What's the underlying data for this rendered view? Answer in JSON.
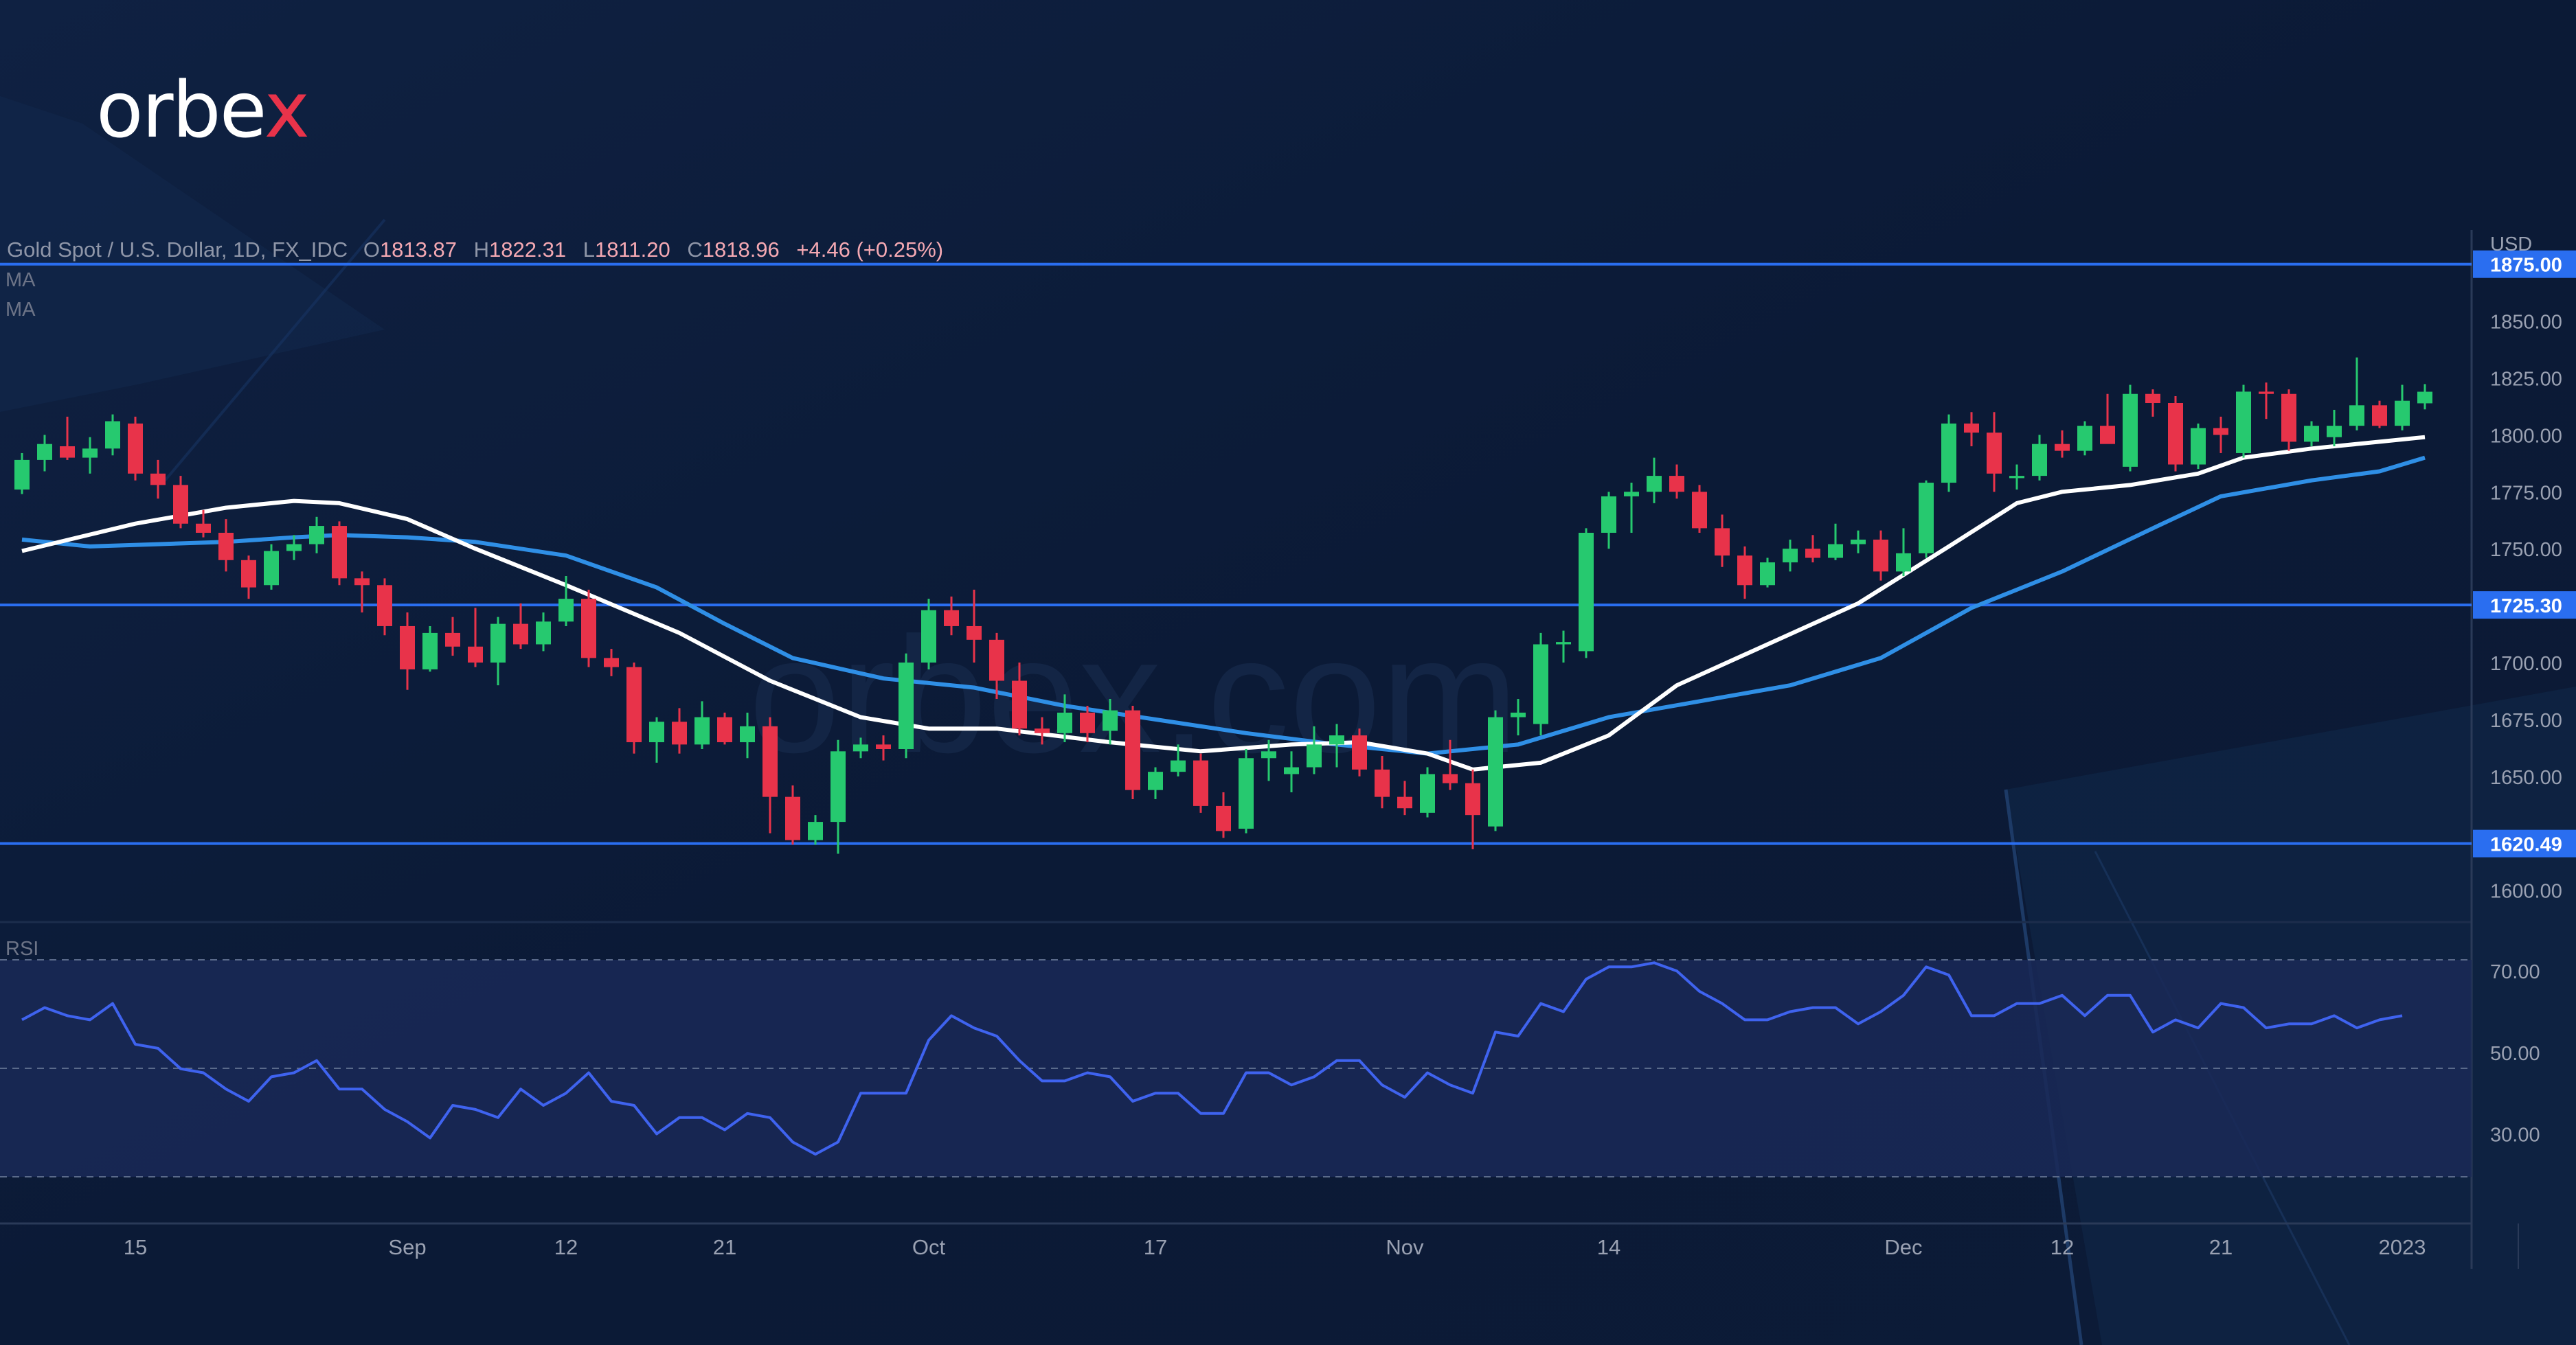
{
  "brand": {
    "logo_text": "orbe",
    "logo_accent": "x",
    "watermark": "orbex.com"
  },
  "header": {
    "symbol": "Gold Spot / U.S. Dollar, 1D, FX_IDC",
    "open_label": "O",
    "open": "1813.87",
    "high_label": "H",
    "high": "1822.31",
    "low_label": "L",
    "low": "1811.20",
    "close_label": "C",
    "close": "1818.96",
    "change": "+4.46 (+0.25%)",
    "indicators": [
      "MA",
      "MA"
    ],
    "rsi_label": "RSI"
  },
  "colors": {
    "background": "#0b1a36",
    "bull": "#26c96f",
    "bear": "#e8334a",
    "level_line": "#2a6ef0",
    "ma_fast": "#ffffff",
    "ma_slow": "#2f8fe6",
    "rsi_line": "#3f63ef"
  },
  "chart_data": [
    {
      "type": "candlestick",
      "title": "Gold Spot / U.S. Dollar, 1D, FX_IDC",
      "unit": "USD",
      "ylim": [
        1586,
        1890
      ],
      "y_ticks": [
        1600,
        1650,
        1675,
        1700,
        1725,
        1750,
        1775,
        1800,
        1825,
        1850
      ],
      "y_tick_labels": [
        "1600.00",
        "1650.00",
        "1675.00",
        "1700.00",
        "1725.00",
        "1750.00",
        "1775.00",
        "1800.00",
        "1825.00",
        "1850.00"
      ],
      "x_tick_labels": [
        {
          "label": "15",
          "index": 5
        },
        {
          "label": "Sep",
          "index": 17
        },
        {
          "label": "12",
          "index": 24
        },
        {
          "label": "21",
          "index": 31
        },
        {
          "label": "Oct",
          "index": 40
        },
        {
          "label": "17",
          "index": 50
        },
        {
          "label": "Nov",
          "index": 61
        },
        {
          "label": "14",
          "index": 70
        },
        {
          "label": "Dec",
          "index": 83
        },
        {
          "label": "12",
          "index": 90
        },
        {
          "label": "21",
          "index": 97
        },
        {
          "label": "2023",
          "index": 105
        }
      ],
      "levels": [
        {
          "value": 1875.0,
          "label": "1875.00"
        },
        {
          "value": 1725.3,
          "label": "1725.30"
        },
        {
          "value": 1620.49,
          "label": "1620.49"
        }
      ],
      "candles": [
        [
          1776,
          1792,
          1774,
          1789
        ],
        [
          1789,
          1800,
          1784,
          1796
        ],
        [
          1795,
          1808,
          1789,
          1790
        ],
        [
          1790,
          1799,
          1783,
          1794
        ],
        [
          1794,
          1809,
          1791,
          1806
        ],
        [
          1805,
          1808,
          1780,
          1783
        ],
        [
          1783,
          1789,
          1772,
          1778
        ],
        [
          1778,
          1782,
          1759,
          1761
        ],
        [
          1761,
          1767,
          1755,
          1757
        ],
        [
          1757,
          1763,
          1740,
          1745
        ],
        [
          1745,
          1747,
          1728,
          1733
        ],
        [
          1734,
          1752,
          1732,
          1749
        ],
        [
          1749,
          1756,
          1745,
          1752
        ],
        [
          1752,
          1764,
          1748,
          1760
        ],
        [
          1760,
          1762,
          1734,
          1737
        ],
        [
          1737,
          1740,
          1722,
          1734
        ],
        [
          1734,
          1737,
          1712,
          1716
        ],
        [
          1716,
          1722,
          1688,
          1697
        ],
        [
          1697,
          1716,
          1696,
          1713
        ],
        [
          1713,
          1720,
          1703,
          1707
        ],
        [
          1707,
          1724,
          1698,
          1700
        ],
        [
          1700,
          1720,
          1690,
          1717
        ],
        [
          1717,
          1726,
          1706,
          1708
        ],
        [
          1708,
          1722,
          1705,
          1718
        ],
        [
          1718,
          1738,
          1716,
          1728
        ],
        [
          1728,
          1732,
          1698,
          1702
        ],
        [
          1702,
          1706,
          1694,
          1698
        ],
        [
          1698,
          1700,
          1660,
          1665
        ],
        [
          1665,
          1676,
          1656,
          1674
        ],
        [
          1674,
          1680,
          1660,
          1664
        ],
        [
          1664,
          1683,
          1662,
          1676
        ],
        [
          1676,
          1678,
          1664,
          1665
        ],
        [
          1665,
          1678,
          1658,
          1672
        ],
        [
          1672,
          1676,
          1625,
          1641
        ],
        [
          1641,
          1646,
          1620,
          1622
        ],
        [
          1622,
          1633,
          1620,
          1630
        ],
        [
          1630,
          1666,
          1616,
          1661
        ],
        [
          1661,
          1667,
          1658,
          1664
        ],
        [
          1664,
          1668,
          1657,
          1662
        ],
        [
          1662,
          1704,
          1658,
          1700
        ],
        [
          1700,
          1728,
          1697,
          1723
        ],
        [
          1723,
          1729,
          1712,
          1716
        ],
        [
          1716,
          1732,
          1700,
          1710
        ],
        [
          1710,
          1713,
          1684,
          1692
        ],
        [
          1692,
          1700,
          1668,
          1671
        ],
        [
          1671,
          1676,
          1664,
          1669
        ],
        [
          1669,
          1686,
          1665,
          1678
        ],
        [
          1678,
          1681,
          1665,
          1669
        ],
        [
          1670,
          1684,
          1664,
          1679
        ],
        [
          1679,
          1681,
          1640,
          1644
        ],
        [
          1644,
          1654,
          1640,
          1652
        ],
        [
          1652,
          1664,
          1650,
          1657
        ],
        [
          1657,
          1660,
          1634,
          1637
        ],
        [
          1637,
          1643,
          1623,
          1626
        ],
        [
          1627,
          1662,
          1625,
          1658
        ],
        [
          1658,
          1666,
          1648,
          1661
        ],
        [
          1651,
          1661,
          1643,
          1654
        ],
        [
          1654,
          1672,
          1651,
          1664
        ],
        [
          1664,
          1673,
          1654,
          1668
        ],
        [
          1668,
          1671,
          1650,
          1653
        ],
        [
          1653,
          1659,
          1636,
          1641
        ],
        [
          1641,
          1648,
          1633,
          1636
        ],
        [
          1634,
          1654,
          1632,
          1651
        ],
        [
          1651,
          1666,
          1644,
          1647
        ],
        [
          1647,
          1653,
          1618,
          1633
        ],
        [
          1628,
          1679,
          1626,
          1676
        ],
        [
          1676,
          1684,
          1668,
          1678
        ],
        [
          1673,
          1713,
          1668,
          1708
        ],
        [
          1708,
          1714,
          1700,
          1709
        ],
        [
          1705,
          1759,
          1702,
          1757
        ],
        [
          1757,
          1775,
          1750,
          1773
        ],
        [
          1773,
          1779,
          1757,
          1775
        ],
        [
          1775,
          1790,
          1770,
          1782
        ],
        [
          1782,
          1787,
          1772,
          1775
        ],
        [
          1775,
          1778,
          1757,
          1759
        ],
        [
          1759,
          1765,
          1742,
          1747
        ],
        [
          1747,
          1751,
          1728,
          1734
        ],
        [
          1734,
          1746,
          1733,
          1744
        ],
        [
          1744,
          1754,
          1740,
          1750
        ],
        [
          1750,
          1756,
          1744,
          1746
        ],
        [
          1746,
          1761,
          1745,
          1752
        ],
        [
          1752,
          1758,
          1748,
          1754
        ],
        [
          1754,
          1758,
          1736,
          1740
        ],
        [
          1740,
          1759,
          1738,
          1748
        ],
        [
          1748,
          1780,
          1746,
          1779
        ],
        [
          1779,
          1809,
          1775,
          1805
        ],
        [
          1805,
          1810,
          1795,
          1801
        ],
        [
          1801,
          1810,
          1775,
          1783
        ],
        [
          1781,
          1787,
          1776,
          1782
        ],
        [
          1782,
          1800,
          1780,
          1796
        ],
        [
          1796,
          1802,
          1790,
          1793
        ],
        [
          1793,
          1806,
          1791,
          1804
        ],
        [
          1804,
          1818,
          1798,
          1796
        ],
        [
          1786,
          1822,
          1784,
          1818
        ],
        [
          1818,
          1820,
          1808,
          1814
        ],
        [
          1814,
          1817,
          1784,
          1787
        ],
        [
          1787,
          1805,
          1785,
          1803
        ],
        [
          1803,
          1808,
          1792,
          1800
        ],
        [
          1792,
          1822,
          1790,
          1819
        ],
        [
          1819,
          1823,
          1807,
          1818
        ],
        [
          1818,
          1820,
          1793,
          1797
        ],
        [
          1797,
          1806,
          1795,
          1804
        ],
        [
          1799,
          1811,
          1795,
          1804
        ],
        [
          1804,
          1834,
          1802,
          1813
        ],
        [
          1813,
          1815,
          1803,
          1804
        ],
        [
          1804,
          1822,
          1802,
          1815
        ],
        [
          1813.87,
          1822.31,
          1811.2,
          1818.96
        ]
      ],
      "ma_fast": [
        [
          0,
          1749
        ],
        [
          5,
          1761
        ],
        [
          9,
          1768
        ],
        [
          12,
          1771
        ],
        [
          14,
          1770
        ],
        [
          17,
          1763
        ],
        [
          20,
          1750
        ],
        [
          24,
          1734
        ],
        [
          29,
          1713
        ],
        [
          33,
          1692
        ],
        [
          37,
          1676
        ],
        [
          40,
          1671
        ],
        [
          43,
          1671
        ],
        [
          48,
          1665
        ],
        [
          52,
          1661
        ],
        [
          56,
          1664
        ],
        [
          59,
          1665
        ],
        [
          62,
          1660
        ],
        [
          64,
          1653
        ],
        [
          67,
          1656
        ],
        [
          70,
          1668
        ],
        [
          73,
          1690
        ],
        [
          77,
          1708
        ],
        [
          81,
          1726
        ],
        [
          85,
          1751
        ],
        [
          88,
          1770
        ],
        [
          90,
          1775
        ],
        [
          93,
          1778
        ],
        [
          96,
          1783
        ],
        [
          98,
          1790
        ],
        [
          101,
          1794
        ],
        [
          104,
          1797
        ],
        [
          106,
          1799
        ]
      ],
      "ma_slow": [
        [
          0,
          1754
        ],
        [
          3,
          1751
        ],
        [
          6,
          1752
        ],
        [
          9,
          1753
        ],
        [
          12,
          1755
        ],
        [
          14,
          1756
        ],
        [
          17,
          1755
        ],
        [
          20,
          1753
        ],
        [
          24,
          1747
        ],
        [
          28,
          1733
        ],
        [
          31,
          1717
        ],
        [
          34,
          1702
        ],
        [
          38,
          1693
        ],
        [
          42,
          1689
        ],
        [
          46,
          1681
        ],
        [
          50,
          1675
        ],
        [
          54,
          1669
        ],
        [
          58,
          1664
        ],
        [
          62,
          1660
        ],
        [
          66,
          1664
        ],
        [
          70,
          1676
        ],
        [
          74,
          1683
        ],
        [
          78,
          1690
        ],
        [
          82,
          1702
        ],
        [
          86,
          1724
        ],
        [
          90,
          1740
        ],
        [
          94,
          1759
        ],
        [
          97,
          1773
        ],
        [
          101,
          1780
        ],
        [
          104,
          1784
        ],
        [
          106,
          1790
        ]
      ]
    },
    {
      "type": "line",
      "title": "RSI",
      "ylim": [
        8,
        82
      ],
      "y_ticks": [
        30,
        50,
        70
      ],
      "y_tick_labels": [
        "30.00",
        "50.00",
        "70.00"
      ],
      "values": [
        58,
        61,
        59,
        58,
        62,
        52,
        51,
        46,
        45,
        41,
        38,
        44,
        45,
        48,
        41,
        41,
        36,
        33,
        29,
        37,
        36,
        34,
        41,
        37,
        40,
        45,
        38,
        37,
        30,
        34,
        34,
        31,
        35,
        34,
        28,
        25,
        28,
        40,
        40,
        40,
        53,
        59,
        56,
        54,
        48,
        43,
        43,
        45,
        44,
        38,
        40,
        40,
        35,
        35,
        45,
        45,
        42,
        44,
        48,
        48,
        42,
        39,
        45,
        42,
        40,
        55,
        54,
        62,
        60,
        68,
        71,
        71,
        72,
        70,
        65,
        62,
        58,
        58,
        60,
        61,
        61,
        57,
        60,
        64,
        71,
        69,
        59,
        59,
        62,
        62,
        64,
        59,
        64,
        64,
        55,
        58,
        56,
        62,
        61,
        56,
        57,
        57,
        59,
        56,
        58,
        59
      ]
    }
  ]
}
